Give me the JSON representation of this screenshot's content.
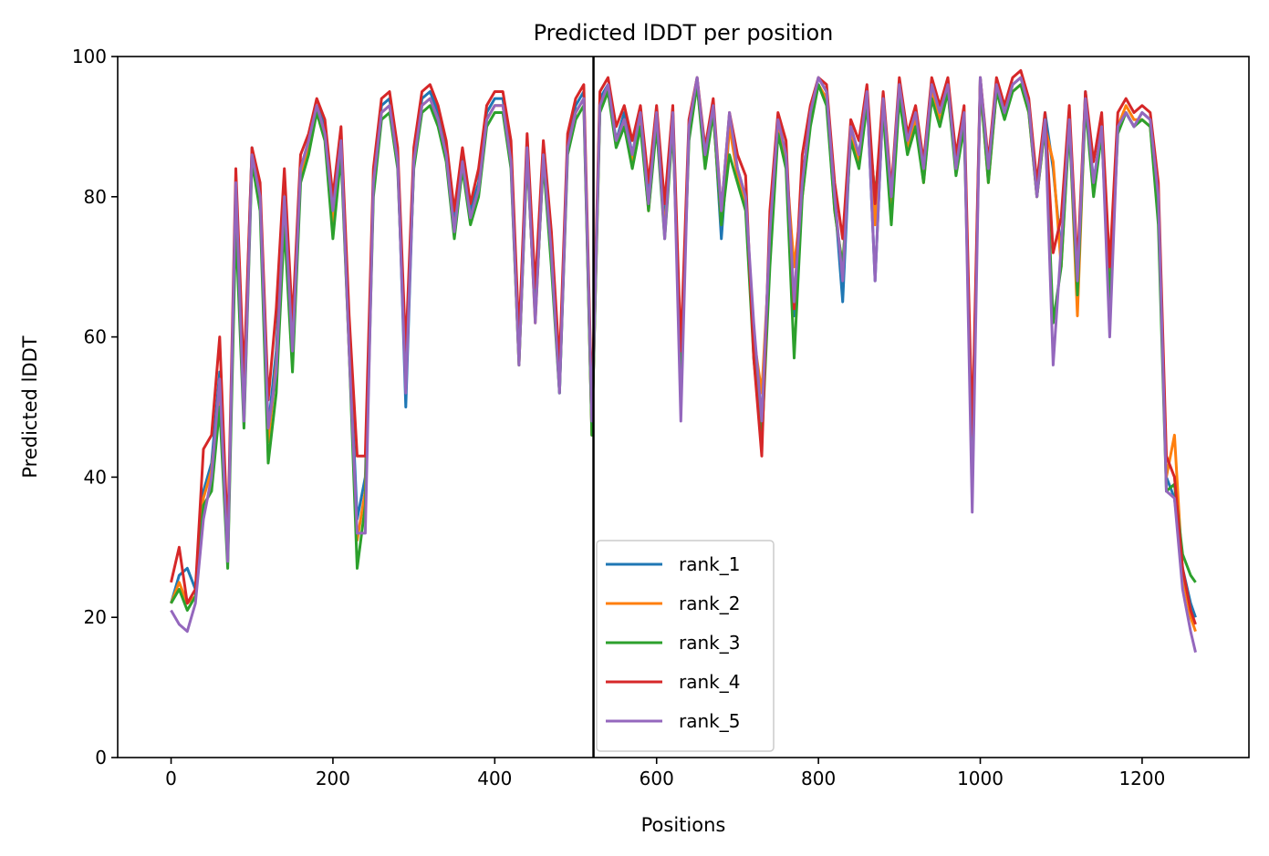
{
  "chart_data": {
    "type": "line",
    "title": "Predicted lDDT per position",
    "xlabel": "Positions",
    "ylabel": "Predicted lDDT",
    "xlim": [
      -66,
      1332
    ],
    "ylim": [
      0,
      100
    ],
    "xticks": [
      0,
      200,
      400,
      600,
      800,
      1000,
      1200
    ],
    "yticks": [
      0,
      20,
      40,
      60,
      80,
      100
    ],
    "grid": false,
    "legend_position": "lower center",
    "vertical_line_x": 522,
    "colors": {
      "rank_1": "#1f77b4",
      "rank_2": "#ff7f0e",
      "rank_3": "#2ca02c",
      "rank_4": "#d62728",
      "rank_5": "#9467bd",
      "vline": "#000000"
    },
    "x": [
      0,
      10,
      20,
      30,
      40,
      50,
      60,
      70,
      80,
      90,
      100,
      110,
      120,
      130,
      140,
      150,
      160,
      170,
      180,
      190,
      200,
      210,
      220,
      230,
      240,
      250,
      260,
      270,
      280,
      290,
      300,
      310,
      320,
      330,
      340,
      350,
      360,
      370,
      380,
      390,
      400,
      410,
      420,
      430,
      440,
      450,
      460,
      470,
      480,
      490,
      500,
      510,
      520,
      530,
      540,
      550,
      560,
      570,
      580,
      590,
      600,
      610,
      620,
      630,
      640,
      650,
      660,
      670,
      680,
      690,
      700,
      710,
      720,
      730,
      740,
      750,
      760,
      770,
      780,
      790,
      800,
      810,
      820,
      830,
      840,
      850,
      860,
      870,
      880,
      890,
      900,
      910,
      920,
      930,
      940,
      950,
      960,
      970,
      980,
      990,
      1000,
      1010,
      1020,
      1030,
      1040,
      1050,
      1060,
      1070,
      1080,
      1090,
      1100,
      1110,
      1120,
      1130,
      1140,
      1150,
      1160,
      1170,
      1180,
      1190,
      1200,
      1210,
      1220,
      1230,
      1240,
      1250,
      1260,
      1266
    ],
    "series": [
      {
        "name": "rank_1",
        "values": [
          22,
          26,
          27,
          24,
          38,
          42,
          55,
          30,
          78,
          52,
          87,
          80,
          47,
          58,
          80,
          60,
          84,
          88,
          93,
          90,
          77,
          88,
          60,
          34,
          40,
          82,
          93,
          94,
          86,
          50,
          85,
          94,
          95,
          92,
          87,
          76,
          86,
          78,
          82,
          92,
          94,
          94,
          86,
          57,
          88,
          65,
          87,
          73,
          52,
          88,
          93,
          95,
          46,
          94,
          96,
          88,
          92,
          86,
          92,
          80,
          92,
          76,
          92,
          55,
          90,
          97,
          85,
          93,
          74,
          90,
          84,
          80,
          60,
          48,
          75,
          91,
          86,
          63,
          82,
          92,
          97,
          95,
          80,
          65,
          90,
          86,
          95,
          68,
          94,
          80,
          96,
          88,
          92,
          84,
          96,
          92,
          96,
          85,
          92,
          42,
          97,
          84,
          96,
          92,
          96,
          97,
          93,
          80,
          92,
          84,
          72,
          90,
          68,
          95,
          82,
          90,
          68,
          90,
          92,
          90,
          92,
          91,
          80,
          40,
          37,
          27,
          22,
          20
        ]
      },
      {
        "name": "rank_2",
        "values": [
          22,
          25,
          22,
          23,
          37,
          41,
          52,
          28,
          80,
          50,
          86,
          80,
          45,
          56,
          78,
          58,
          83,
          87,
          93,
          89,
          76,
          87,
          58,
          31,
          38,
          81,
          92,
          93,
          85,
          55,
          85,
          93,
          94,
          91,
          86,
          75,
          85,
          77,
          81,
          91,
          93,
          93,
          85,
          56,
          87,
          62,
          86,
          71,
          53,
          87,
          92,
          94,
          46,
          93,
          95,
          88,
          91,
          85,
          91,
          78,
          91,
          75,
          91,
          54,
          89,
          96,
          85,
          92,
          76,
          90,
          83,
          79,
          60,
          52,
          73,
          90,
          85,
          70,
          80,
          91,
          96,
          94,
          78,
          70,
          89,
          85,
          94,
          76,
          93,
          78,
          95,
          87,
          91,
          82,
          95,
          91,
          95,
          84,
          91,
          44,
          96,
          82,
          95,
          92,
          95,
          96,
          92,
          80,
          90,
          85,
          70,
          91,
          63,
          94,
          81,
          90,
          67,
          90,
          93,
          91,
          91,
          90,
          78,
          40,
          46,
          26,
          20,
          18
        ]
      },
      {
        "name": "rank_3",
        "values": [
          22,
          24,
          21,
          23,
          36,
          38,
          50,
          27,
          76,
          47,
          85,
          78,
          42,
          52,
          76,
          55,
          82,
          86,
          92,
          88,
          74,
          86,
          58,
          27,
          36,
          80,
          91,
          92,
          84,
          55,
          84,
          92,
          93,
          90,
          85,
          74,
          84,
          76,
          80,
          90,
          92,
          92,
          84,
          56,
          86,
          63,
          85,
          70,
          52,
          86,
          91,
          93,
          46,
          92,
          95,
          87,
          90,
          84,
          90,
          78,
          90,
          74,
          90,
          55,
          88,
          96,
          84,
          92,
          76,
          86,
          82,
          78,
          57,
          45,
          70,
          89,
          84,
          57,
          80,
          90,
          96,
          93,
          78,
          70,
          88,
          84,
          93,
          80,
          92,
          76,
          94,
          86,
          90,
          82,
          94,
          90,
          95,
          83,
          90,
          42,
          96,
          82,
          95,
          91,
          95,
          96,
          92,
          80,
          90,
          62,
          70,
          90,
          66,
          93,
          80,
          89,
          65,
          89,
          92,
          90,
          91,
          90,
          76,
          38,
          39,
          29,
          26,
          25
        ]
      },
      {
        "name": "rank_4",
        "values": [
          25,
          30,
          22,
          24,
          44,
          46,
          60,
          31,
          84,
          54,
          87,
          82,
          51,
          64,
          84,
          62,
          86,
          89,
          94,
          91,
          80,
          90,
          63,
          43,
          43,
          84,
          94,
          95,
          87,
          58,
          87,
          95,
          96,
          93,
          88,
          78,
          87,
          79,
          84,
          93,
          95,
          95,
          88,
          60,
          89,
          67,
          88,
          75,
          56,
          89,
          94,
          96,
          50,
          95,
          97,
          90,
          93,
          88,
          93,
          82,
          93,
          79,
          93,
          58,
          91,
          97,
          87,
          94,
          78,
          92,
          86,
          83,
          57,
          43,
          78,
          92,
          88,
          64,
          86,
          93,
          97,
          96,
          82,
          74,
          91,
          88,
          96,
          79,
          95,
          81,
          97,
          89,
          93,
          85,
          97,
          93,
          97,
          86,
          93,
          46,
          97,
          85,
          97,
          93,
          97,
          98,
          94,
          82,
          92,
          72,
          77,
          93,
          70,
          95,
          85,
          92,
          70,
          92,
          94,
          92,
          93,
          92,
          82,
          43,
          40,
          27,
          21,
          19
        ]
      },
      {
        "name": "rank_5",
        "values": [
          21,
          19,
          18,
          22,
          34,
          40,
          54,
          28,
          82,
          48,
          86,
          80,
          47,
          55,
          80,
          58,
          84,
          88,
          93,
          89,
          78,
          88,
          58,
          32,
          32,
          82,
          92,
          93,
          85,
          52,
          85,
          93,
          94,
          91,
          86,
          75,
          85,
          77,
          81,
          91,
          93,
          93,
          85,
          56,
          87,
          62,
          86,
          72,
          52,
          87,
          92,
          94,
          48,
          93,
          96,
          88,
          91,
          86,
          92,
          79,
          92,
          74,
          92,
          48,
          90,
          97,
          86,
          93,
          78,
          92,
          84,
          80,
          62,
          48,
          75,
          91,
          86,
          65,
          82,
          92,
          97,
          95,
          80,
          68,
          90,
          86,
          95,
          68,
          94,
          80,
          96,
          88,
          92,
          84,
          96,
          92,
          96,
          84,
          92,
          35,
          97,
          84,
          96,
          92,
          96,
          97,
          93,
          80,
          91,
          56,
          73,
          91,
          68,
          94,
          82,
          90,
          60,
          90,
          92,
          90,
          92,
          91,
          80,
          38,
          37,
          24,
          18,
          15
        ]
      }
    ]
  }
}
